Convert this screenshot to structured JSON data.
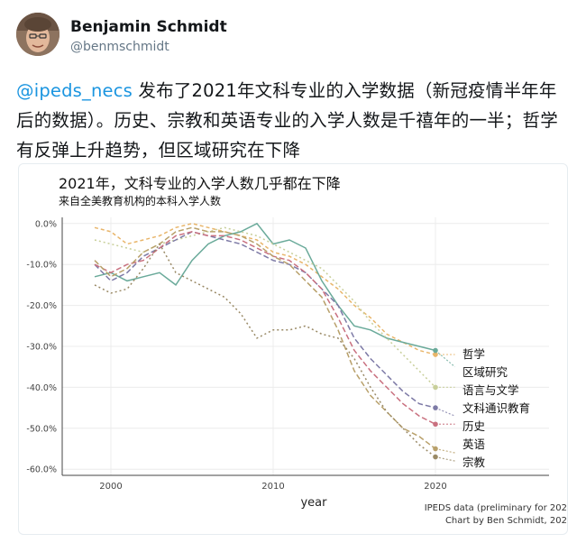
{
  "tweet": {
    "author_name": "Benjamin Schmidt",
    "author_handle": "@benmschmidt",
    "mention": "@ipeds_necs",
    "text_after_mention": " 发布了2021年文科专业的入学数据（新冠疫情半年年后的数据）。历史、宗教和英语专业的入学人数是千禧年的一半；哲学有反弹上升趋势，但区域研究在下降"
  },
  "card": {
    "caption_line1": "IPEDS data (preliminary for 202",
    "caption_line2": "Chart by Ben Schmidt, 202"
  },
  "chart_data": {
    "type": "line",
    "title": "2021年，文科专业的入学人数几乎都在下降",
    "subtitle": "来自全美教育机构的本科入学人数",
    "xlabel": "year",
    "ylabel": "",
    "xlim": [
      1997,
      2027
    ],
    "ylim": [
      -61.5,
      1.5
    ],
    "x_ticks": [
      2000,
      2010,
      2020
    ],
    "x_tick_labels": [
      "2000",
      "2010",
      "2020"
    ],
    "y_ticks": [
      0,
      -10,
      -20,
      -30,
      -40,
      -50,
      -60
    ],
    "y_tick_labels": [
      "0.0%",
      "-10.0%",
      "-20.0%",
      "-30.0%",
      "-40.0%",
      "-50.0%",
      "-60.0%"
    ],
    "grid": true,
    "x": [
      1999,
      2000,
      2001,
      2002,
      2003,
      2004,
      2005,
      2006,
      2007,
      2008,
      2009,
      2010,
      2011,
      2012,
      2013,
      2014,
      2015,
      2016,
      2017,
      2018,
      2019,
      2020
    ],
    "series": [
      {
        "name": "哲学",
        "color": "#e8b56a",
        "dash": "4,3",
        "values": [
          -1,
          -2,
          -5,
          -4,
          -3,
          -1,
          0,
          -1,
          -2,
          -3,
          -4,
          -7,
          -8,
          -10,
          -13,
          -16,
          -20,
          -23,
          -27,
          -29,
          -31,
          -32
        ],
        "ext_value": -32
      },
      {
        "name": "区域研究",
        "color": "#6aaa9a",
        "dash": "",
        "values": [
          -13,
          -12,
          -14,
          -13,
          -12,
          -15,
          -9,
          -5,
          -3,
          -2,
          0,
          -5,
          -4,
          -6,
          -14,
          -20,
          -25,
          -26,
          -28,
          -29,
          -30,
          -31
        ],
        "ext_value": -35
      },
      {
        "name": "语言与文学",
        "color": "#c8cf9a",
        "dash": "2,3",
        "values": [
          -4,
          -5,
          -6,
          -7,
          -5,
          -4,
          -3,
          -2,
          -1,
          -2,
          -3,
          -5,
          -7,
          -9,
          -11,
          -15,
          -19,
          -24,
          -28,
          -32,
          -36,
          -40
        ],
        "ext_value": -40
      },
      {
        "name": "文科通识教育",
        "color": "#7d7aa6",
        "dash": "6,3",
        "values": [
          -10,
          -14,
          -12,
          -8,
          -6,
          -4,
          -2,
          -3,
          -4,
          -5,
          -7,
          -9,
          -10,
          -12,
          -16,
          -20,
          -28,
          -33,
          -37,
          -41,
          -44,
          -45
        ],
        "ext_value": -47
      },
      {
        "name": "历史",
        "color": "#c9707f",
        "dash": "6,3",
        "values": [
          -10,
          -12,
          -10,
          -9,
          -6,
          -3,
          -2,
          -3,
          -3,
          -4,
          -6,
          -8,
          -9,
          -12,
          -16,
          -23,
          -31,
          -36,
          -40,
          -44,
          -47,
          -49
        ],
        "ext_value": -49
      },
      {
        "name": "英语",
        "color": "#b8a06a",
        "dash": "6,3",
        "values": [
          -9,
          -13,
          -11,
          -7,
          -5,
          -2,
          -1,
          -2,
          -2,
          -3,
          -5,
          -8,
          -10,
          -14,
          -18,
          -26,
          -36,
          -42,
          -46,
          -50,
          -52,
          -55
        ],
        "ext_value": -56
      },
      {
        "name": "宗教",
        "color": "#9a8a66",
        "dash": "2,3",
        "values": [
          -15,
          -17,
          -16,
          -11,
          -5,
          -12,
          -14,
          -16,
          -18,
          -22,
          -28,
          -26,
          -26,
          -25,
          -27,
          -28,
          -33,
          -40,
          -46,
          -50,
          -54,
          -57
        ],
        "ext_value": -58
      }
    ]
  }
}
